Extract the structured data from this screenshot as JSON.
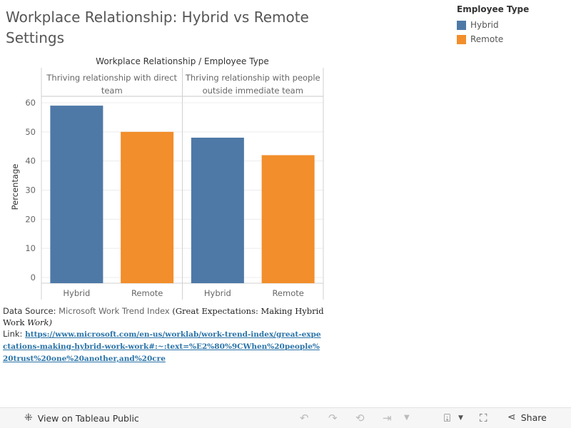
{
  "title": "Workplace Relationship: Hybrid vs Remote Settings",
  "legend": {
    "title": "Employee Type",
    "items": [
      {
        "label": "Hybrid",
        "color": "#4e79a7"
      },
      {
        "label": "Remote",
        "color": "#f28e2b"
      }
    ]
  },
  "chart_data": {
    "type": "bar",
    "header": "Workplace Relationship  /  Employee Type",
    "ylabel": "Percentage",
    "ylim": [
      0,
      60
    ],
    "yticks": [
      0,
      10,
      20,
      30,
      40,
      50,
      60
    ],
    "grid": true,
    "panels": [
      {
        "label_lines": [
          "Thriving relationship with direct",
          "team"
        ],
        "categories": [
          "Hybrid",
          "Remote"
        ],
        "values": [
          59,
          50
        ]
      },
      {
        "label_lines": [
          "Thriving relationship with people",
          "outside immediate team"
        ],
        "categories": [
          "Hybrid",
          "Remote"
        ],
        "values": [
          48,
          42
        ]
      }
    ],
    "colors": {
      "Hybrid": "#4e79a7",
      "Remote": "#f28e2b"
    }
  },
  "source": {
    "prefix": "Data Source:",
    "name": "Microsoft Work Trend Index",
    "paren_open": "(",
    "report": "Great Expectations: Making Hybrid Work",
    "report_italic": "Work",
    "paren_close": ")",
    "link_label": "Link:",
    "url": "https://www.microsoft.com/en-us/worklab/work-trend-index/great-expectations-making-hybrid-work-work#:~:text=%E2%80%9CWhen%20people%20trust%20one%20another,and%20cre"
  },
  "footer": {
    "view_label": "View on Tableau Public",
    "share_label": "Share",
    "icons": [
      "tableau-logo-icon",
      "undo-icon",
      "redo-icon",
      "revert-icon",
      "refresh-icon",
      "chevron-down-icon",
      "download-icon",
      "fullscreen-icon",
      "share-icon"
    ]
  }
}
